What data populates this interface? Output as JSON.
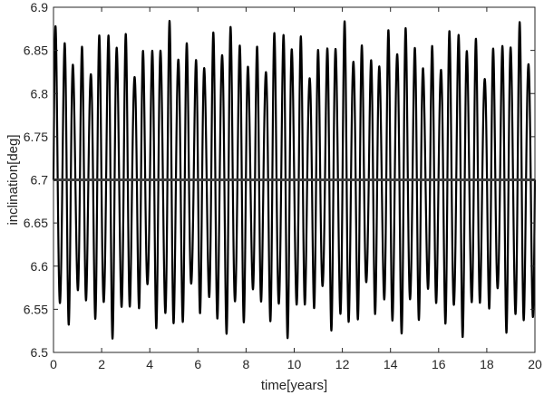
{
  "chart_data": {
    "type": "line",
    "title": "",
    "xlabel": "time[years]",
    "ylabel": "inclination[deg]",
    "xlim": [
      0,
      20
    ],
    "ylim": [
      6.5,
      6.9
    ],
    "xticks": [
      0,
      2,
      4,
      6,
      8,
      10,
      12,
      14,
      16,
      18,
      20
    ],
    "xtick_labels": [
      "0",
      "2",
      "4",
      "6",
      "8",
      "10",
      "12",
      "14",
      "16",
      "18",
      "20"
    ],
    "yticks": [
      6.5,
      6.55,
      6.6,
      6.65,
      6.7,
      6.75,
      6.8,
      6.85,
      6.9
    ],
    "ytick_labels": [
      "6.5",
      "6.55",
      "6.6",
      "6.65",
      "6.7",
      "6.75",
      "6.8",
      "6.85",
      "6.9"
    ],
    "grid": false,
    "legend": "none",
    "colors": {
      "series": "#000000",
      "reference": "#404040",
      "axes": "#262626"
    },
    "series": [
      {
        "style": "oscillation",
        "oscillation_model": {
          "mean_deg": 6.7,
          "base_amplitude_deg": 0.15,
          "fast_period_years": 0.5,
          "fast_amplitude_deg": 0.02,
          "cycles_per_year": 2.75,
          "modulation_period_years": 2.4,
          "modulation_amplitude_deg": 0.015,
          "sample_step_years": 0.005
        }
      },
      {
        "style": "reference",
        "x": [
          0,
          20
        ],
        "y": [
          6.7,
          6.7
        ]
      }
    ]
  }
}
